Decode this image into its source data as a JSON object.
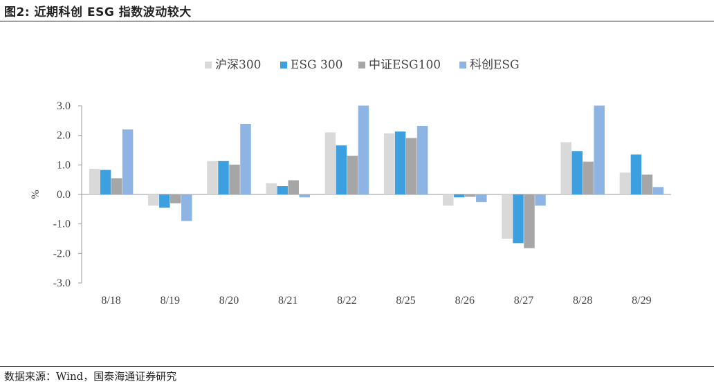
{
  "figure": {
    "title": "图2:  近期科创 ESG 指数波动较大",
    "source": "数据来源：Wind，国泰海通证券研究"
  },
  "chart_data": {
    "type": "bar",
    "title": "近期科创 ESG 指数波动较大",
    "xlabel": "",
    "ylabel": "%",
    "ylim": [
      -3.0,
      3.0
    ],
    "yticks": [
      3.0,
      2.0,
      1.0,
      0.0,
      -1.0,
      -2.0,
      -3.0
    ],
    "ytick_labels": [
      "3.0",
      "2.0",
      "1.0",
      "0.0",
      "-1.0",
      "-2.0",
      "-3.0"
    ],
    "legend_position": "top-center",
    "grid": false,
    "categories": [
      "8/18",
      "8/19",
      "8/20",
      "8/21",
      "8/22",
      "8/25",
      "8/26",
      "8/27",
      "8/28",
      "8/29"
    ],
    "series": [
      {
        "name": "沪深300",
        "color": "#d9d9d9",
        "values": [
          0.87,
          -0.38,
          1.13,
          0.38,
          2.1,
          2.07,
          -0.38,
          -1.5,
          1.77,
          0.74
        ]
      },
      {
        "name": "ESG 300",
        "color": "#3ca0e0",
        "values": [
          0.83,
          -0.45,
          1.13,
          0.28,
          1.66,
          2.13,
          -0.1,
          -1.65,
          1.47,
          1.35
        ]
      },
      {
        "name": "中证ESG100",
        "color": "#a6a6a6",
        "values": [
          0.55,
          -0.3,
          1.01,
          0.48,
          1.31,
          1.91,
          -0.08,
          -1.82,
          1.11,
          0.67
        ]
      },
      {
        "name": "科创ESG",
        "color": "#8db4e2",
        "values": [
          2.2,
          -0.9,
          2.39,
          -0.1,
          3.01,
          2.32,
          -0.26,
          -0.38,
          3.01,
          0.25
        ]
      }
    ]
  }
}
